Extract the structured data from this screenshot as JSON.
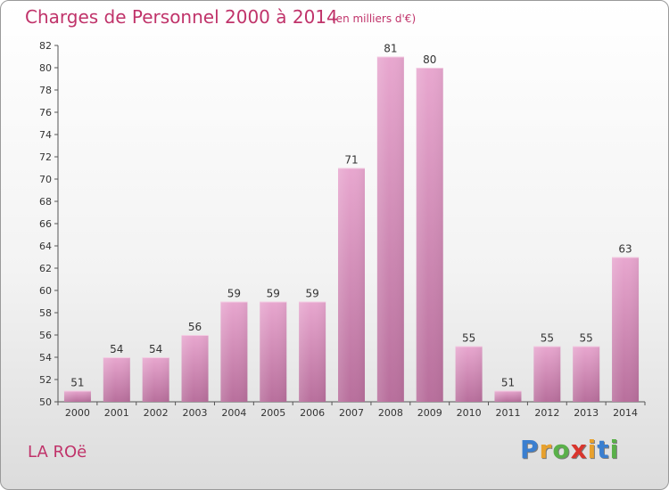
{
  "title": "Charges de Personnel 2000 à 2014",
  "subtitle": "(en milliers d'€)",
  "commune": "LA ROë",
  "logo": {
    "letters": [
      "P",
      "r",
      "o",
      "x",
      "i",
      "t",
      "i"
    ],
    "colors": [
      "#3a7fd0",
      "#e8a12d",
      "#5ab04a",
      "#d9352d",
      "#e8a12d",
      "#3a7fd0",
      "#5ab04a"
    ]
  },
  "chart_data": {
    "type": "bar",
    "title": "Charges de Personnel 2000 à 2014",
    "subtitle": "(en milliers d'€)",
    "categories": [
      "2000",
      "2001",
      "2002",
      "2003",
      "2004",
      "2005",
      "2006",
      "2007",
      "2008",
      "2009",
      "2010",
      "2011",
      "2012",
      "2013",
      "2014"
    ],
    "values": [
      51,
      54,
      54,
      56,
      59,
      59,
      59,
      71,
      81,
      80,
      55,
      51,
      55,
      55,
      63
    ],
    "ylim": [
      50,
      82
    ],
    "yticks": [
      50,
      52,
      54,
      56,
      58,
      60,
      62,
      64,
      66,
      68,
      70,
      72,
      74,
      76,
      78,
      80,
      82
    ],
    "grid": false,
    "bar_color": "#d98fbb"
  }
}
